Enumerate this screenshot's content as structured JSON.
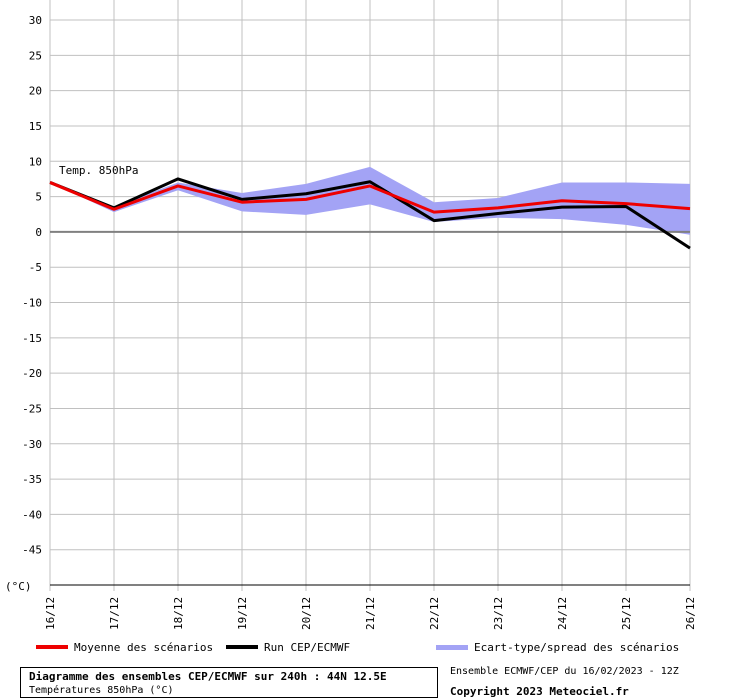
{
  "chart_data": {
    "type": "line",
    "annotation": "Temp. 850hPa",
    "unit_label": "(°C)",
    "ylim": [
      -50,
      30
    ],
    "y_ticks": [
      30,
      25,
      20,
      15,
      10,
      5,
      0,
      -5,
      -10,
      -15,
      -20,
      -25,
      -30,
      -35,
      -40,
      -45
    ],
    "categories": [
      "16/12",
      "17/12",
      "18/12",
      "19/12",
      "20/12",
      "21/12",
      "22/12",
      "23/12",
      "24/12",
      "25/12",
      "26/12"
    ],
    "grid": true,
    "series": [
      {
        "name": "Moyenne des scénarios",
        "color": "#ee0000",
        "values": [
          7.0,
          3.2,
          6.5,
          4.2,
          4.6,
          6.5,
          2.8,
          3.4,
          4.4,
          4.0,
          3.3
        ]
      },
      {
        "name": "Run CEP/ECMWF",
        "color": "#000000",
        "values": [
          7.0,
          3.4,
          7.5,
          4.6,
          5.4,
          7.1,
          1.6,
          2.6,
          3.5,
          3.6,
          -2.3
        ]
      }
    ],
    "spread": {
      "name": "Ecart-type/spread des scénarios",
      "color": "#a3a3f5",
      "upper": [
        7.0,
        3.6,
        7.0,
        5.5,
        6.8,
        9.2,
        4.2,
        4.8,
        7.0,
        7.0,
        6.8
      ],
      "lower": [
        7.0,
        2.8,
        5.9,
        2.9,
        2.4,
        3.9,
        1.4,
        2.0,
        1.8,
        1.0,
        -0.4
      ]
    }
  },
  "legend": {
    "mean_label": "Moyenne des scénarios",
    "run_label": "Run CEP/ECMWF",
    "spread_label": "Ecart-type/spread des scénarios"
  },
  "footer": {
    "title": "Diagramme des ensembles CEP/ECMWF sur 240h : 44N 12.5E",
    "subtitle": "Températures 850hPa (°C)",
    "run_info": "Ensemble ECMWF/CEP du 16/02/2023 - 12Z",
    "copyright": "Copyright 2023 Meteociel.fr"
  }
}
